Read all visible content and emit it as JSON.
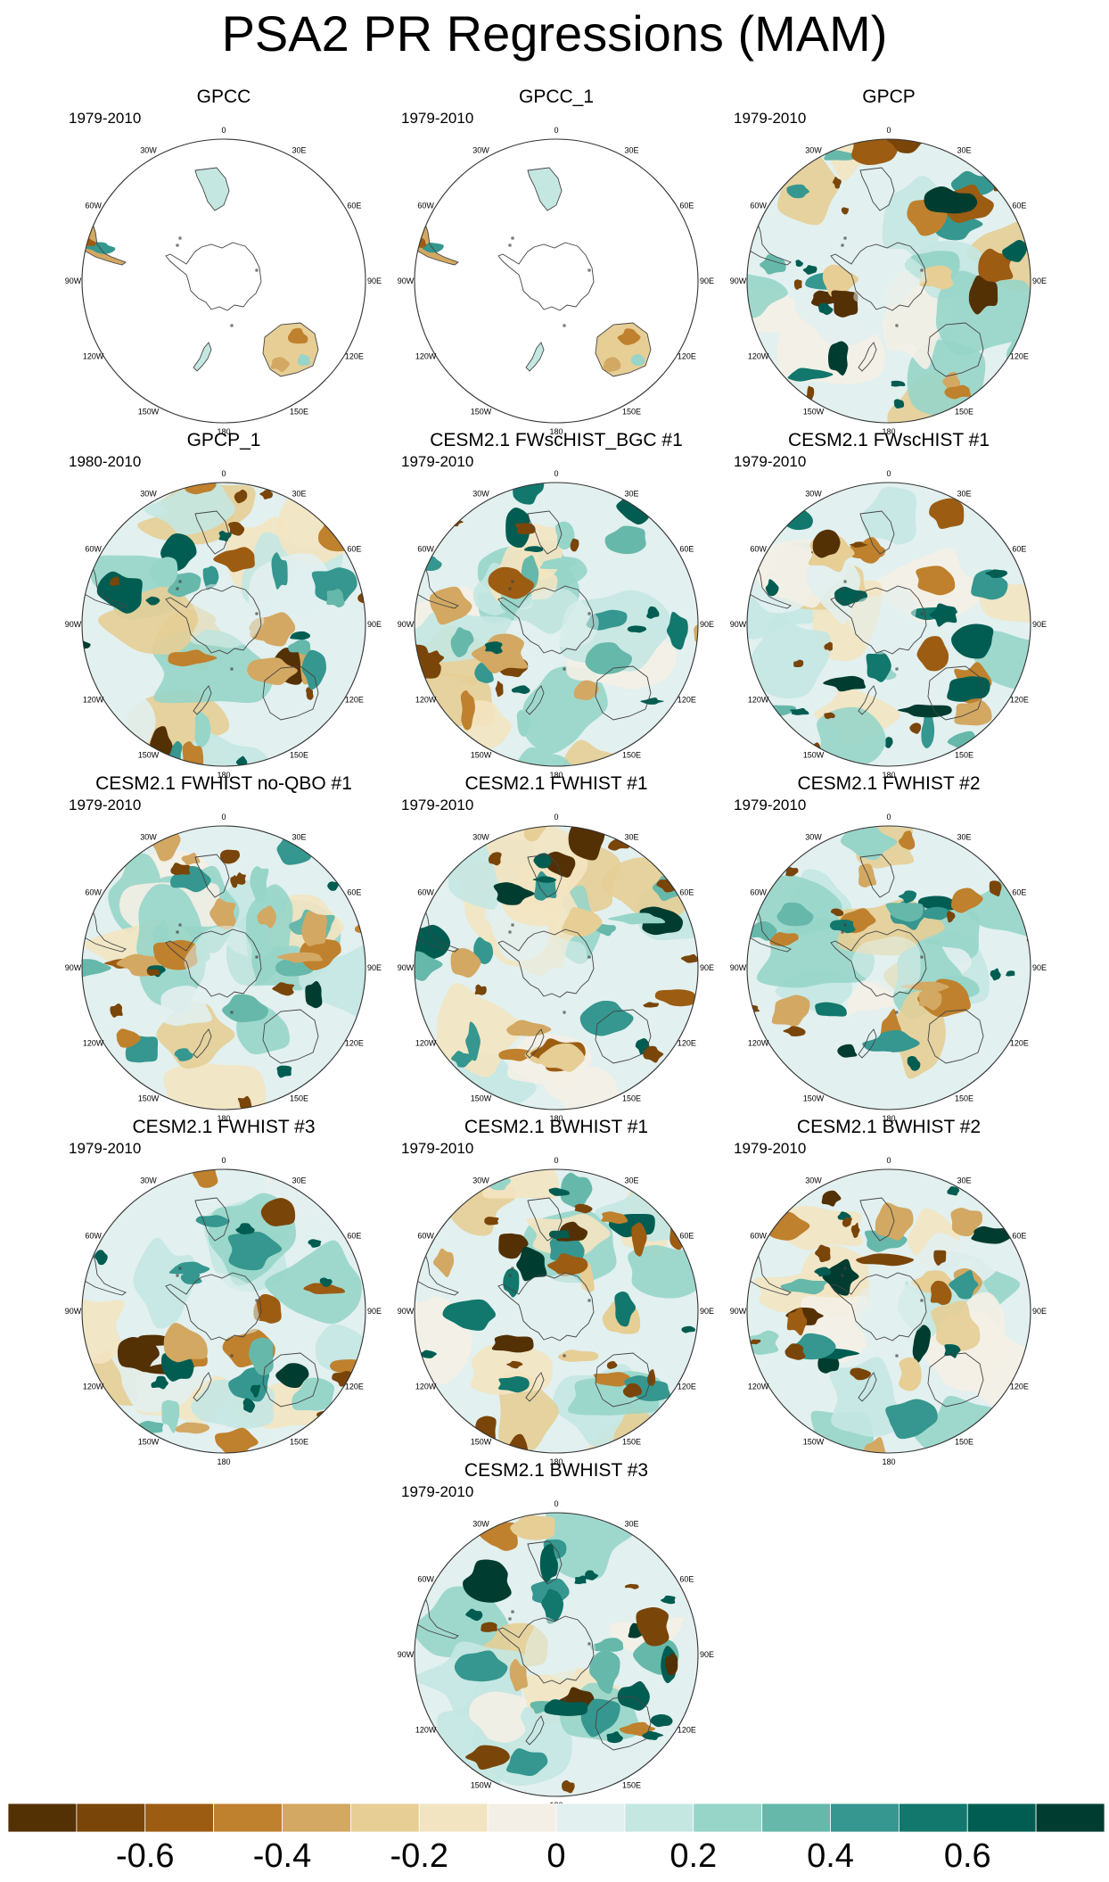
{
  "title": "PSA2 PR Regressions (MAM)",
  "lon_labels": [
    "0",
    "30E",
    "60E",
    "90E",
    "120E",
    "150E",
    "180",
    "150W",
    "120W",
    "90W",
    "60W",
    "30W"
  ],
  "panels": [
    {
      "title": "GPCC",
      "period": "1979-2010",
      "mode": "land"
    },
    {
      "title": "GPCC_1",
      "period": "1979-2010",
      "mode": "land"
    },
    {
      "title": "GPCP",
      "period": "1979-2010",
      "mode": "full"
    },
    {
      "title": "GPCP_1",
      "period": "1980-2010",
      "mode": "full"
    },
    {
      "title": "CESM2.1 FWscHIST_BGC #1",
      "period": "1979-2010",
      "mode": "full"
    },
    {
      "title": "CESM2.1 FWscHIST #1",
      "period": "1979-2010",
      "mode": "full"
    },
    {
      "title": "CESM2.1 FWHIST no-QBO #1",
      "period": "1979-2010",
      "mode": "full"
    },
    {
      "title": "CESM2.1 FWHIST #1",
      "period": "1979-2010",
      "mode": "full"
    },
    {
      "title": "CESM2.1 FWHIST #2",
      "period": "1979-2010",
      "mode": "full"
    },
    {
      "title": "CESM2.1 FWHIST #3",
      "period": "1979-2010",
      "mode": "full"
    },
    {
      "title": "CESM2.1 BWHIST #1",
      "period": "1979-2010",
      "mode": "full"
    },
    {
      "title": "CESM2.1 BWHIST #2",
      "period": "1979-2010",
      "mode": "full"
    },
    {
      "title": "CESM2.1 BWHIST #3",
      "period": "1979-2010",
      "mode": "full"
    }
  ],
  "colorbar": {
    "colors": [
      "#543005",
      "#7a4508",
      "#9c5c12",
      "#bf812d",
      "#d3a862",
      "#e6ce95",
      "#f3e4c1",
      "#f4efe6",
      "#e2f0ef",
      "#c4e7e2",
      "#97d5c9",
      "#66b8aa",
      "#35978f",
      "#12776c",
      "#015d52",
      "#003c30"
    ],
    "labels": [
      {
        "text": "-0.6",
        "pos": 2
      },
      {
        "text": "-0.4",
        "pos": 4
      },
      {
        "text": "-0.2",
        "pos": 6
      },
      {
        "text": "0",
        "pos": 8
      },
      {
        "text": "0.2",
        "pos": 10
      },
      {
        "text": "0.4",
        "pos": 12
      },
      {
        "text": "0.6",
        "pos": 14
      }
    ]
  }
}
